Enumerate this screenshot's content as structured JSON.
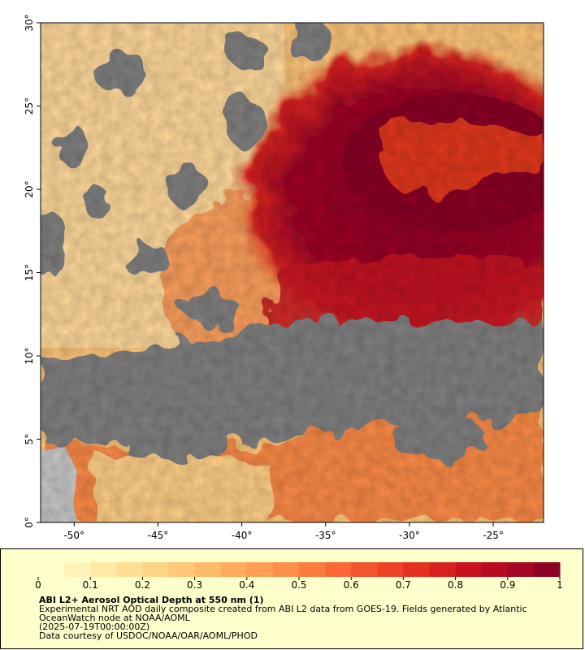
{
  "map": {
    "xlim": [
      -52,
      -22
    ],
    "ylim": [
      0,
      30
    ],
    "xticks": [
      {
        "value": -50,
        "label": "-50°"
      },
      {
        "value": -45,
        "label": "-45°"
      },
      {
        "value": -40,
        "label": "-40°"
      },
      {
        "value": -35,
        "label": "-35°"
      },
      {
        "value": -30,
        "label": "-30°"
      },
      {
        "value": -25,
        "label": "-25°"
      }
    ],
    "yticks": [
      {
        "value": 0,
        "label": "0°"
      },
      {
        "value": 5,
        "label": "5°"
      },
      {
        "value": 10,
        "label": "10°"
      },
      {
        "value": 15,
        "label": "15°"
      },
      {
        "value": 20,
        "label": "20°"
      },
      {
        "value": 25,
        "label": "25°"
      },
      {
        "value": 30,
        "label": "30°"
      }
    ]
  },
  "colorbar": {
    "lim": [
      0,
      1
    ],
    "ticks": [
      0,
      0.1,
      0.2,
      0.3,
      0.4,
      0.5,
      0.6,
      0.7,
      0.8,
      0.9,
      1
    ],
    "colors": [
      "#ffffcc",
      "#fff3b8",
      "#ffe9a6",
      "#ffdf94",
      "#fed585",
      "#fec877",
      "#febb6a",
      "#fead5d",
      "#fd9e52",
      "#fd8f47",
      "#fc7c3e",
      "#fb6835",
      "#f5552d",
      "#ee4226",
      "#e33021",
      "#d6211e",
      "#c8131e",
      "#b80a21",
      "#a50624",
      "#8e0226"
    ]
  },
  "footer": {
    "title": "ABI L2+ Aerosol Optical Depth at 550 nm (1)",
    "description": "Experimental NRT AOD daily composite created from ABI L2 data from GOES-19. Fields generated by Atlantic OceanWatch node at NOAA/AOML",
    "date": "(2025-07-19T00:00:00Z)",
    "credit": "Data courtesy of USDOC/NOAA/OAR/AOML/PHOD"
  }
}
